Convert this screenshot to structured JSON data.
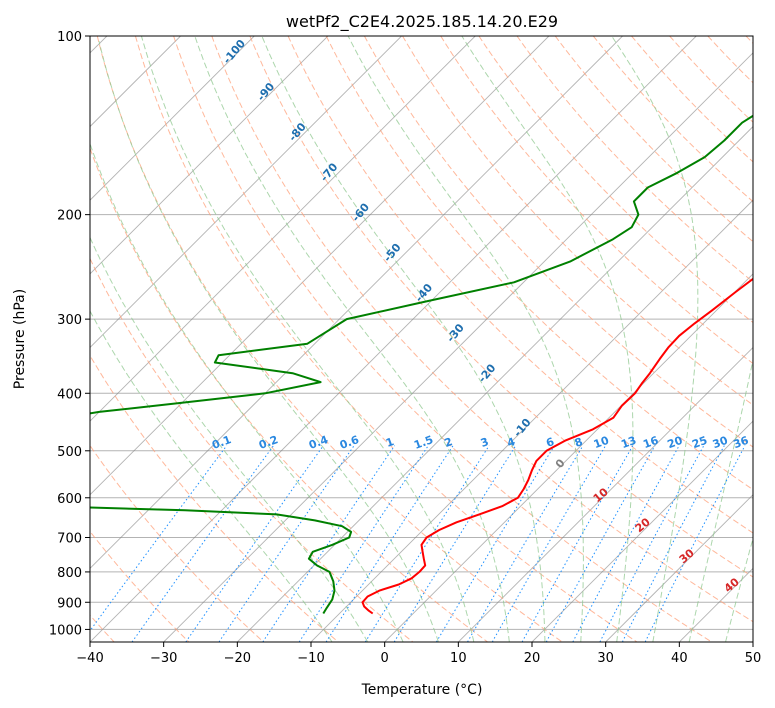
{
  "chart_data": {
    "type": "line",
    "subtype": "skew-t log-p diagram",
    "title": "wetPf2_C2E4.2025.185.14.20.E29",
    "xlabel": "Temperature (°C)",
    "ylabel": "Pressure (hPa)",
    "xlim": [
      -40,
      50
    ],
    "ylim": [
      1050,
      100
    ],
    "yscale": "log",
    "x_ticks": [
      -40,
      -30,
      -20,
      -10,
      0,
      10,
      20,
      30,
      40,
      50
    ],
    "x_tick_labels": [
      "−40",
      "−30",
      "−20",
      "−10",
      "0",
      "10",
      "20",
      "30",
      "40",
      "50"
    ],
    "y_ticks": [
      100,
      200,
      300,
      400,
      500,
      600,
      700,
      800,
      900,
      1000
    ],
    "y_tick_labels": [
      "100",
      "200",
      "300",
      "400",
      "500",
      "600",
      "700",
      "800",
      "900",
      "1000"
    ],
    "grid": true,
    "colors": {
      "temperature": "#ff0000",
      "dewpoint": "#008000",
      "isotherm": "#808080",
      "dry_adiabat": "#ffa07a",
      "moist_adiabat": "#90c890",
      "mixing_ratio": "#1e90ff",
      "dry_adiabat_label": "#d62728",
      "moist_adiabat_label": "#1f6faf",
      "mixing_label": "#2a88e0",
      "zero_label": "#808080"
    },
    "series": [
      {
        "key": "temperature",
        "points": [
          [
            3.4,
            100
          ],
          [
            2.3,
            110
          ],
          [
            1.3,
            120
          ],
          [
            0.3,
            130
          ],
          [
            -0.5,
            140
          ],
          [
            0.2,
            150
          ],
          [
            0.8,
            160
          ],
          [
            1.2,
            170
          ],
          [
            1.5,
            180
          ],
          [
            1.6,
            190
          ],
          [
            1.7,
            200
          ],
          [
            1.6,
            215
          ],
          [
            1.2,
            230
          ],
          [
            1.0,
            250
          ],
          [
            0.1,
            270
          ],
          [
            -0.6,
            290
          ],
          [
            -1.2,
            305
          ],
          [
            -1.6,
            320
          ],
          [
            -1.5,
            335
          ],
          [
            -1.1,
            350
          ],
          [
            -0.5,
            370
          ],
          [
            -0.2,
            385
          ],
          [
            0.2,
            400
          ],
          [
            0.1,
            420
          ],
          [
            0.6,
            440
          ],
          [
            -0.6,
            460
          ],
          [
            -2.8,
            480
          ],
          [
            -4.0,
            500
          ],
          [
            -4.0,
            520
          ],
          [
            -3.3,
            540
          ],
          [
            -2.5,
            560
          ],
          [
            -1.9,
            580
          ],
          [
            -1.5,
            600
          ],
          [
            -2.5,
            620
          ],
          [
            -4.5,
            640
          ],
          [
            -6.5,
            660
          ],
          [
            -7.8,
            680
          ],
          [
            -8.5,
            700
          ],
          [
            -8.2,
            720
          ],
          [
            -7.1,
            740
          ],
          [
            -6.0,
            760
          ],
          [
            -4.9,
            780
          ],
          [
            -4.8,
            800
          ],
          [
            -5.0,
            820
          ],
          [
            -5.9,
            840
          ],
          [
            -7.7,
            860
          ],
          [
            -8.5,
            880
          ],
          [
            -8.4,
            900
          ],
          [
            -7.6,
            915
          ],
          [
            -6.4,
            930
          ],
          [
            -5.5,
            940
          ]
        ]
      },
      {
        "key": "dewpoint",
        "points": [
          [
            -16.8,
            100
          ],
          [
            -18.1,
            110
          ],
          [
            -19.1,
            120
          ],
          [
            -20.5,
            130
          ],
          [
            -22.0,
            140
          ],
          [
            -22.0,
            150
          ],
          [
            -22.4,
            160
          ],
          [
            -24.0,
            170
          ],
          [
            -26.0,
            180
          ],
          [
            -26.0,
            190
          ],
          [
            -23.6,
            200
          ],
          [
            -22.8,
            210
          ],
          [
            -23.7,
            220
          ],
          [
            -26.5,
            240
          ],
          [
            -31.3,
            260
          ],
          [
            -40.6,
            280
          ],
          [
            -49.0,
            300
          ],
          [
            -51.0,
            330
          ],
          [
            -61.5,
            345
          ],
          [
            -61.0,
            355
          ],
          [
            -49.0,
            370
          ],
          [
            -44.0,
            383
          ],
          [
            -50.0,
            400
          ],
          [
            -60.0,
            415
          ],
          [
            -70.0,
            430
          ],
          [
            -78.0,
            450
          ],
          [
            -78.0,
            495
          ],
          [
            -69.0,
            507
          ],
          [
            -75.0,
            520
          ],
          [
            -85.0,
            525
          ],
          [
            -75.0,
            620
          ],
          [
            -60.0,
            622
          ],
          [
            -45.0,
            630
          ],
          [
            -32.0,
            640
          ],
          [
            -26.0,
            655
          ],
          [
            -21.5,
            670
          ],
          [
            -19.5,
            685
          ],
          [
            -19.0,
            700
          ],
          [
            -20.3,
            720
          ],
          [
            -22.0,
            740
          ],
          [
            -21.6,
            760
          ],
          [
            -19.6,
            780
          ],
          [
            -17.0,
            800
          ],
          [
            -15.2,
            830
          ],
          [
            -13.8,
            860
          ],
          [
            -12.9,
            890
          ],
          [
            -12.5,
            920
          ],
          [
            -12.2,
            940
          ]
        ]
      }
    ],
    "mixing_ratio_labels": [
      "0.1",
      "0.2",
      "0.4",
      "0.6",
      "1",
      "1.5",
      "2",
      "3",
      "4",
      "6",
      "8",
      "10",
      "13",
      "16",
      "20",
      "25",
      "30",
      "36"
    ],
    "moist_adiabat_labels": [
      "-100",
      "-90",
      "-80",
      "-70",
      "-60",
      "-50",
      "-40",
      "-30",
      "-20",
      "-10",
      "0"
    ],
    "dry_adiabat_labels": [
      "10",
      "20",
      "30",
      "40"
    ]
  }
}
